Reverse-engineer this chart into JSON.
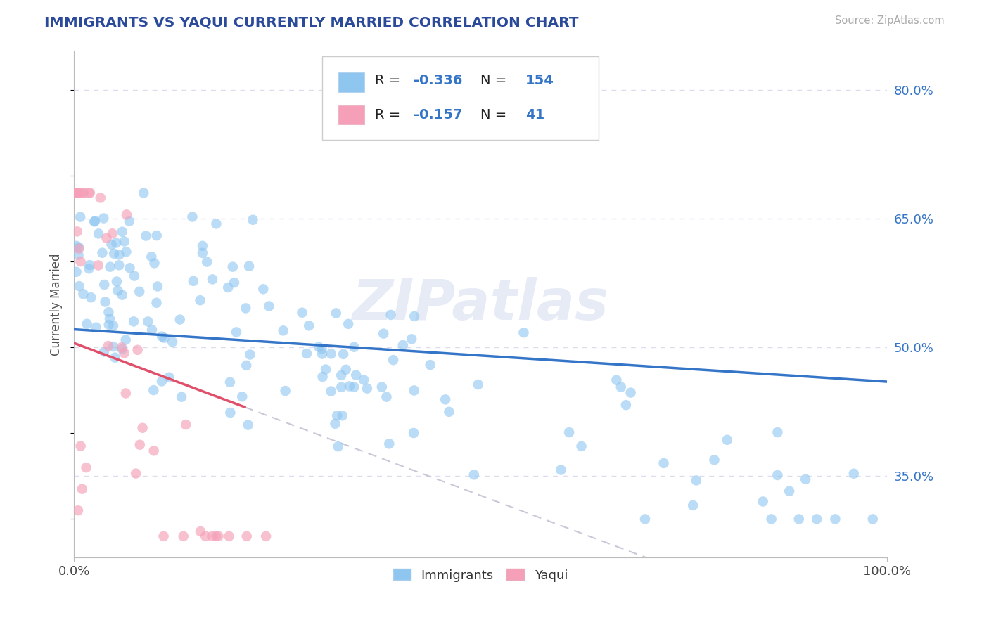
{
  "title": "IMMIGRANTS VS YAQUI CURRENTLY MARRIED CORRELATION CHART",
  "source_text": "Source: ZipAtlas.com",
  "ylabel": "Currently Married",
  "r_immigrants": -0.336,
  "n_immigrants": 154,
  "r_yaqui": -0.157,
  "n_yaqui": 41,
  "xlim": [
    0.0,
    1.0
  ],
  "ylim": [
    0.255,
    0.845
  ],
  "yticks": [
    0.35,
    0.5,
    0.65,
    0.8
  ],
  "ytick_labels": [
    "35.0%",
    "50.0%",
    "65.0%",
    "80.0%"
  ],
  "xtick_labels": [
    "0.0%",
    "100.0%"
  ],
  "color_immigrants": "#8EC6F0",
  "color_yaqui": "#F5A0B8",
  "color_trend_immigrants": "#3575C8",
  "color_trend_yaqui": "#E0506A",
  "color_dashed": "#C8C8D8",
  "background_color": "#FFFFFF",
  "grid_color": "#DDDDF0",
  "title_color": "#2B4A9A",
  "source_color": "#AAAAAA",
  "watermark": "ZIPatlas"
}
